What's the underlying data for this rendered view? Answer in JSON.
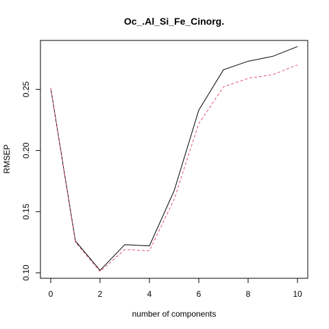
{
  "chart_data": {
    "type": "line",
    "title": "Oc_.Al_Si_Fe_Cinorg.",
    "xlabel": "number of components",
    "ylabel": "RMSEP",
    "xlim": [
      0,
      10
    ],
    "ylim": [
      0.1,
      0.29
    ],
    "x_ticks": [
      "0",
      "2",
      "4",
      "6",
      "8",
      "10"
    ],
    "y_ticks": [
      "0.10",
      "0.15",
      "0.20",
      "0.25"
    ],
    "grid": false,
    "legend": "none",
    "x": [
      0,
      1,
      2,
      3,
      4,
      5,
      6,
      7,
      8,
      9,
      10
    ],
    "series": [
      {
        "style": "solid",
        "color": "#000000",
        "values": [
          0.251,
          0.126,
          0.102,
          0.123,
          0.122,
          0.167,
          0.233,
          0.266,
          0.273,
          0.277,
          0.285
        ]
      },
      {
        "style": "dashed",
        "color": "#df536b",
        "values": [
          0.251,
          0.125,
          0.101,
          0.119,
          0.118,
          0.16,
          0.222,
          0.252,
          0.259,
          0.262,
          0.27
        ]
      }
    ]
  }
}
